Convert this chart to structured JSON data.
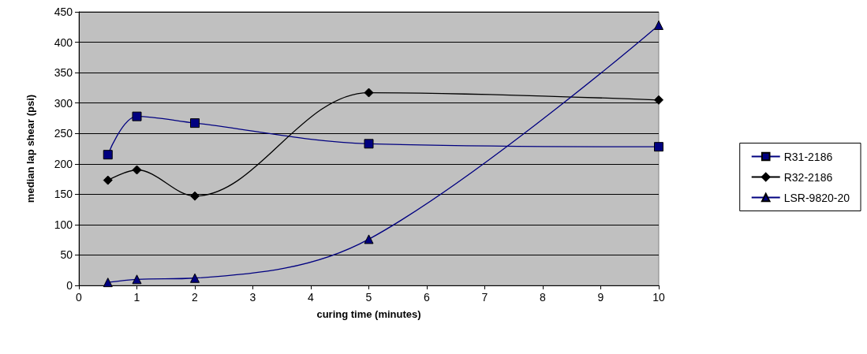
{
  "chart_data": {
    "type": "line",
    "xlabel": "curing time (minutes)",
    "ylabel": "median lap shear (psi)",
    "x": [
      0.5,
      1,
      2,
      5,
      10
    ],
    "series": [
      {
        "name": "R31-2186",
        "color": "#000080",
        "values": [
          215,
          278,
          267,
          233,
          228
        ],
        "marker": "square"
      },
      {
        "name": "R32-2186",
        "color": "#000000",
        "values": [
          173,
          190,
          147,
          317,
          305
        ],
        "marker": "diamond"
      },
      {
        "name": "LSR-9820-20",
        "color": "#000080",
        "values": [
          5,
          10,
          12,
          76,
          428
        ],
        "marker": "triangle"
      }
    ],
    "xlim": [
      0,
      10
    ],
    "xticks": [
      0,
      1,
      2,
      3,
      4,
      5,
      6,
      7,
      8,
      9,
      10
    ],
    "ylim": [
      0,
      450
    ],
    "yticks": [
      0,
      50,
      100,
      150,
      200,
      250,
      300,
      350,
      400,
      450
    ],
    "grid": "y",
    "legend": "right",
    "line_style": "solid"
  }
}
